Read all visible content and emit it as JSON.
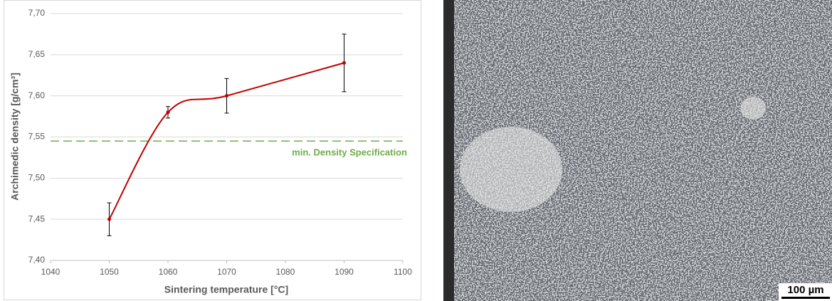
{
  "chart_data": {
    "type": "line",
    "x": [
      1050,
      1060,
      1070,
      1090
    ],
    "values": [
      7.45,
      7.58,
      7.6,
      7.64
    ],
    "errors": [
      0.02,
      0.007,
      0.021,
      0.035
    ],
    "color": "#c00000",
    "smooth": true,
    "x_label": "Sintering temperature [°C]",
    "y_label": "Archimedic density [g/cm³]",
    "xlim": [
      1040,
      1100
    ],
    "xticks": [
      1040,
      1050,
      1060,
      1070,
      1080,
      1090,
      1100
    ],
    "ylim": [
      7.4,
      7.7
    ],
    "yticks": [
      {
        "value": 7.4,
        "label": "7,40"
      },
      {
        "value": 7.45,
        "label": "7,45"
      },
      {
        "value": 7.5,
        "label": "7,50"
      },
      {
        "value": 7.55,
        "label": "7,55"
      },
      {
        "value": 7.6,
        "label": "7,60"
      },
      {
        "value": 7.65,
        "label": "7,65"
      },
      {
        "value": 7.7,
        "label": "7,70"
      }
    ],
    "grid": true,
    "hlines": [
      {
        "value": 7.545,
        "label": "min. Density Specification",
        "color": "#70ad47"
      }
    ]
  },
  "micrograph": {
    "scale_bar": "100 µm"
  }
}
